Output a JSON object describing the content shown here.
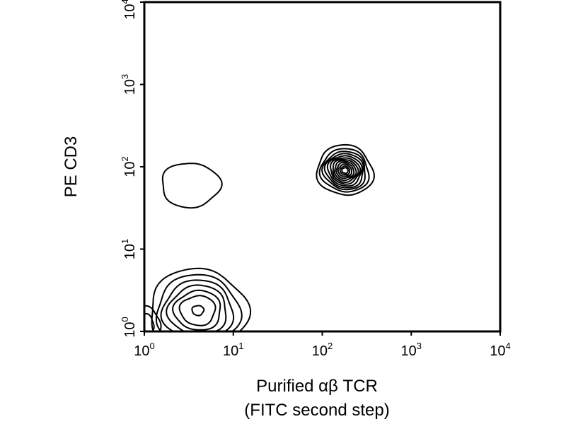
{
  "chart_data": {
    "type": "contour",
    "title": "",
    "x_scale": "log",
    "y_scale": "log",
    "xlim": [
      1,
      10000
    ],
    "ylim": [
      1,
      10000
    ],
    "grid": false,
    "xlabel": {
      "line1": "Purified αβ TCR",
      "line2": "(FITC second step)"
    },
    "ylabel": "PE CD3",
    "x_ticks": [
      {
        "value": 1,
        "base": "10",
        "exp": "0"
      },
      {
        "value": 10,
        "base": "10",
        "exp": "1"
      },
      {
        "value": 100,
        "base": "10",
        "exp": "2"
      },
      {
        "value": 1000,
        "base": "10",
        "exp": "3"
      },
      {
        "value": 10000,
        "base": "10",
        "exp": "4"
      }
    ],
    "y_ticks": [
      {
        "value": 1,
        "base": "10",
        "exp": "0"
      },
      {
        "value": 10,
        "base": "10",
        "exp": "1"
      },
      {
        "value": 100,
        "base": "10",
        "exp": "2"
      },
      {
        "value": 1000,
        "base": "10",
        "exp": "3"
      },
      {
        "value": 10000,
        "base": "10",
        "exp": "4"
      }
    ],
    "populations": [
      {
        "center": [
          180,
          90
        ],
        "spread_log": [
          0.3,
          0.32
        ],
        "tilt_deg": 60,
        "contour_scales": [
          1.0,
          0.86,
          0.76,
          0.68,
          0.6,
          0.52,
          0.45,
          0.38,
          0.31,
          0.24,
          0.17,
          0.11
        ]
      },
      {
        "center": [
          3.3,
          60
        ],
        "spread_log": [
          0.33,
          0.27
        ],
        "tilt_deg": 0,
        "contour_scales": [
          1.0
        ]
      },
      {
        "center": [
          4,
          1.8
        ],
        "spread_log": [
          0.55,
          0.5
        ],
        "tilt_deg": 0,
        "contour_scales": [
          1.0,
          0.85,
          0.72,
          0.6,
          0.48,
          0.36,
          0.12
        ]
      },
      {
        "center": [
          1,
          1.2
        ],
        "spread_log": [
          0.18,
          0.22
        ],
        "tilt_deg": 0,
        "contour_scales": [
          1.0,
          0.6
        ]
      }
    ]
  }
}
